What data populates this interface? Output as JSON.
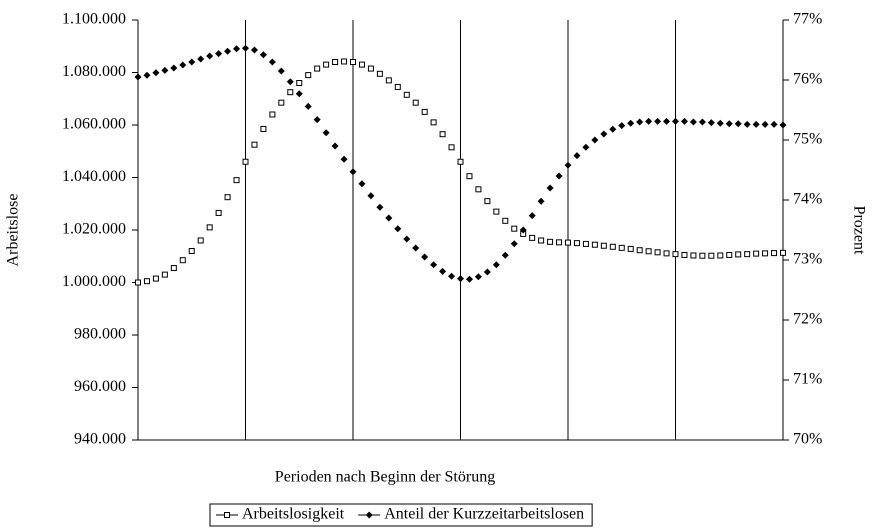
{
  "chart_data": {
    "type": "scatter",
    "xlabel": "Perioden nach Beginn der Störung",
    "ylabel": "Arbeitslose",
    "y2label": "Prozent",
    "x": [
      0,
      1,
      2,
      3,
      4,
      5,
      6,
      7,
      8,
      9,
      10,
      11,
      12,
      13,
      14,
      15,
      16,
      17,
      18,
      19,
      20,
      21,
      22,
      23,
      24,
      25,
      26,
      27,
      28,
      29,
      30,
      31,
      32,
      33,
      34,
      35,
      36,
      37,
      38,
      39,
      40,
      41,
      42,
      43,
      44,
      45,
      46,
      47,
      48,
      49,
      50,
      51,
      52,
      53,
      54,
      55,
      56,
      57,
      58,
      59,
      60,
      61,
      62,
      63,
      64,
      65,
      66,
      67,
      68,
      69,
      70,
      71,
      72
    ],
    "xlim": [
      0,
      72
    ],
    "xticks": [
      0,
      12,
      24,
      36,
      48,
      60,
      72
    ],
    "grid": true,
    "ylim": [
      940000,
      1100000
    ],
    "yticks": [
      {
        "value": 940000,
        "label": "940.000"
      },
      {
        "value": 960000,
        "label": "960.000"
      },
      {
        "value": 980000,
        "label": "980.000"
      },
      {
        "value": 1000000,
        "label": "1.000.000"
      },
      {
        "value": 1020000,
        "label": "1.020.000"
      },
      {
        "value": 1040000,
        "label": "1.040.000"
      },
      {
        "value": 1060000,
        "label": "1.060.000"
      },
      {
        "value": 1080000,
        "label": "1.080.000"
      },
      {
        "value": 1100000,
        "label": "1.100.000"
      }
    ],
    "y2lim": [
      70,
      77
    ],
    "y2ticks": [
      {
        "value": 70,
        "label": "70%"
      },
      {
        "value": 71,
        "label": "71%"
      },
      {
        "value": 72,
        "label": "72%"
      },
      {
        "value": 73,
        "label": "73%"
      },
      {
        "value": 74,
        "label": "74%"
      },
      {
        "value": 75,
        "label": "75%"
      },
      {
        "value": 76,
        "label": "76%"
      },
      {
        "value": 77,
        "label": "77%"
      }
    ],
    "legend": "bottom",
    "series": [
      {
        "name": "Arbeitslosigkeit",
        "color": "#000000",
        "marker": "square",
        "axis": "y",
        "values": [
          1000000,
          1000500,
          1001500,
          1003000,
          1005500,
          1008500,
          1012000,
          1016000,
          1021000,
          1026500,
          1032500,
          1039000,
          1046000,
          1052500,
          1058500,
          1064000,
          1068500,
          1072500,
          1076000,
          1079000,
          1081500,
          1083000,
          1084000,
          1084200,
          1084000,
          1083000,
          1081500,
          1079500,
          1077000,
          1074500,
          1071500,
          1068500,
          1065000,
          1061000,
          1056500,
          1051500,
          1046000,
          1040500,
          1035500,
          1031000,
          1027000,
          1023500,
          1020500,
          1018500,
          1017000,
          1016000,
          1015500,
          1015300,
          1015200,
          1015000,
          1014700,
          1014400,
          1014000,
          1013600,
          1013200,
          1012800,
          1012300,
          1011900,
          1011500,
          1011100,
          1010800,
          1010500,
          1010300,
          1010200,
          1010200,
          1010300,
          1010500,
          1010700,
          1010800,
          1011000,
          1011100,
          1011200,
          1011300
        ]
      },
      {
        "name": "Anteil der Kurzzeitarbeitslosen",
        "color": "#000000",
        "marker": "diamond",
        "axis": "y2",
        "values": [
          76.05,
          76.08,
          76.12,
          76.16,
          76.2,
          76.25,
          76.3,
          76.35,
          76.4,
          76.44,
          76.48,
          76.52,
          76.53,
          76.5,
          76.42,
          76.3,
          76.15,
          75.97,
          75.77,
          75.56,
          75.34,
          75.12,
          74.9,
          74.68,
          74.47,
          74.27,
          74.07,
          73.88,
          73.7,
          73.52,
          73.35,
          73.2,
          73.05,
          72.92,
          72.81,
          72.73,
          72.69,
          72.68,
          72.72,
          72.8,
          72.92,
          73.08,
          73.27,
          73.5,
          73.74,
          73.98,
          74.2,
          74.4,
          74.58,
          74.74,
          74.88,
          75.0,
          75.1,
          75.18,
          75.24,
          75.28,
          75.3,
          75.31,
          75.31,
          75.31,
          75.31,
          75.31,
          75.3,
          75.3,
          75.29,
          75.28,
          75.27,
          75.27,
          75.26,
          75.26,
          75.26,
          75.26,
          75.25
        ]
      }
    ]
  }
}
